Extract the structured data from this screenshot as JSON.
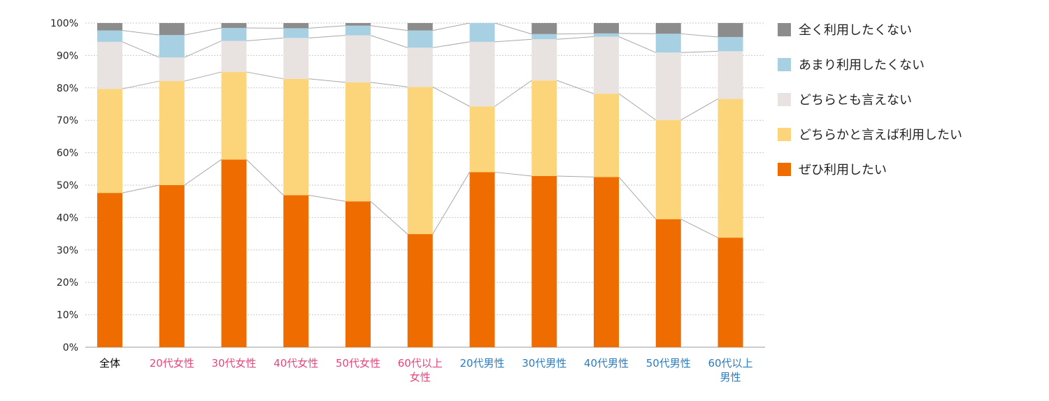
{
  "chart_data": {
    "type": "bar",
    "stacked": true,
    "normalized": true,
    "connector_lines": true,
    "title": "",
    "xlabel": "",
    "ylabel": "",
    "ylim": [
      0,
      100
    ],
    "yticks": [
      "0%",
      "10%",
      "20%",
      "30%",
      "40%",
      "50%",
      "60%",
      "70%",
      "80%",
      "90%",
      "100%"
    ],
    "grid": "horizontal-dotted",
    "legend_position": "right",
    "categories": [
      {
        "lines": [
          "全体"
        ],
        "color": "#000000"
      },
      {
        "lines": [
          "20代女性"
        ],
        "color": "#e8457d"
      },
      {
        "lines": [
          "30代女性"
        ],
        "color": "#e8457d"
      },
      {
        "lines": [
          "40代女性"
        ],
        "color": "#e8457d"
      },
      {
        "lines": [
          "50代女性"
        ],
        "color": "#e8457d"
      },
      {
        "lines": [
          "60代以上",
          "女性"
        ],
        "color": "#e8457d"
      },
      {
        "lines": [
          "20代男性"
        ],
        "color": "#2b7cbf"
      },
      {
        "lines": [
          "30代男性"
        ],
        "color": "#2b7cbf"
      },
      {
        "lines": [
          "40代男性"
        ],
        "color": "#2b7cbf"
      },
      {
        "lines": [
          "50代男性"
        ],
        "color": "#2b7cbf"
      },
      {
        "lines": [
          "60代以上",
          "男性"
        ],
        "color": "#2b7cbf"
      }
    ],
    "series": [
      {
        "name": "ぜひ利用したい",
        "color": "#ee6c00",
        "values": [
          47.6,
          50.0,
          57.9,
          46.9,
          45.0,
          34.9,
          54.0,
          52.8,
          52.5,
          39.5,
          33.8
        ]
      },
      {
        "name": "どちらかと言えば利用したい",
        "color": "#fcd47a",
        "values": [
          32.1,
          32.1,
          27.0,
          35.9,
          36.7,
          45.4,
          20.3,
          29.5,
          25.7,
          30.6,
          42.8
        ]
      },
      {
        "name": "どちらとも言えない",
        "color": "#e8e3e0",
        "values": [
          14.5,
          7.3,
          9.6,
          12.6,
          14.5,
          12.1,
          19.9,
          12.7,
          17.6,
          20.8,
          14.7
        ]
      },
      {
        "name": "あまり利用したくない",
        "color": "#a7d1e2",
        "values": [
          3.5,
          6.9,
          4.0,
          3.0,
          3.0,
          5.3,
          5.8,
          1.6,
          1.0,
          5.8,
          4.4
        ]
      },
      {
        "name": "全く利用したくない",
        "color": "#8c8c8c",
        "values": [
          2.3,
          3.7,
          1.5,
          1.6,
          0.8,
          2.3,
          0.0,
          3.4,
          3.2,
          3.3,
          4.3
        ]
      }
    ]
  }
}
